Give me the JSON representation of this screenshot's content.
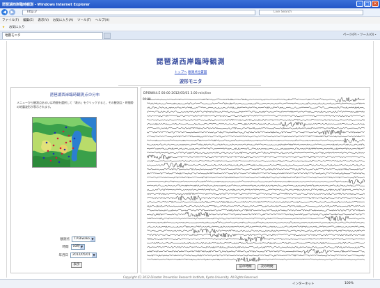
{
  "browser": {
    "title": "琵琶湖西岸臨時観測 - Windows Internet Explorer",
    "address": "http://",
    "search_placeholder": "Live Search",
    "menu": [
      "ファイル(F)",
      "編集(E)",
      "表示(V)",
      "お気に入り(A)",
      "ツール(T)",
      "ヘルプ(H)"
    ],
    "favorites_label": "お気に入り",
    "tab_label": "地震モニタ",
    "command_bar": "ページ(P)・ツール(O)・"
  },
  "page": {
    "title": "琵琶湖西岸臨時観測",
    "links": [
      "トップへ",
      "観測点位置図"
    ],
    "subtitle": "波形モニタ"
  },
  "left": {
    "heading": "琵琶湖西岸臨時観測点の分布",
    "description": "メニューから観測点あるいは時間を選択して「表示」をクリックすると、その観測点・時間帯の地震波形が表示されます。",
    "form": {
      "station_label": "観測点",
      "station_value": "T.P.Biwako",
      "hour_label": "時間",
      "hour_value": "00時",
      "date_label": "年月日",
      "date_value": "2012/05/01",
      "show_label": "表示"
    }
  },
  "right": {
    "trace_header": "DP.BWK4.E  00:00  2012/05/01  3.00 min/line",
    "y_label": "00:00",
    "prev_label": "前の時間",
    "next_label": "次の時間"
  },
  "footer": "Copyright (C) 2012 Disaster Prevention Research Institute, Kyoto University. All Rights Reserved.",
  "status": {
    "zone": "インターネット",
    "zoom": "100%"
  }
}
